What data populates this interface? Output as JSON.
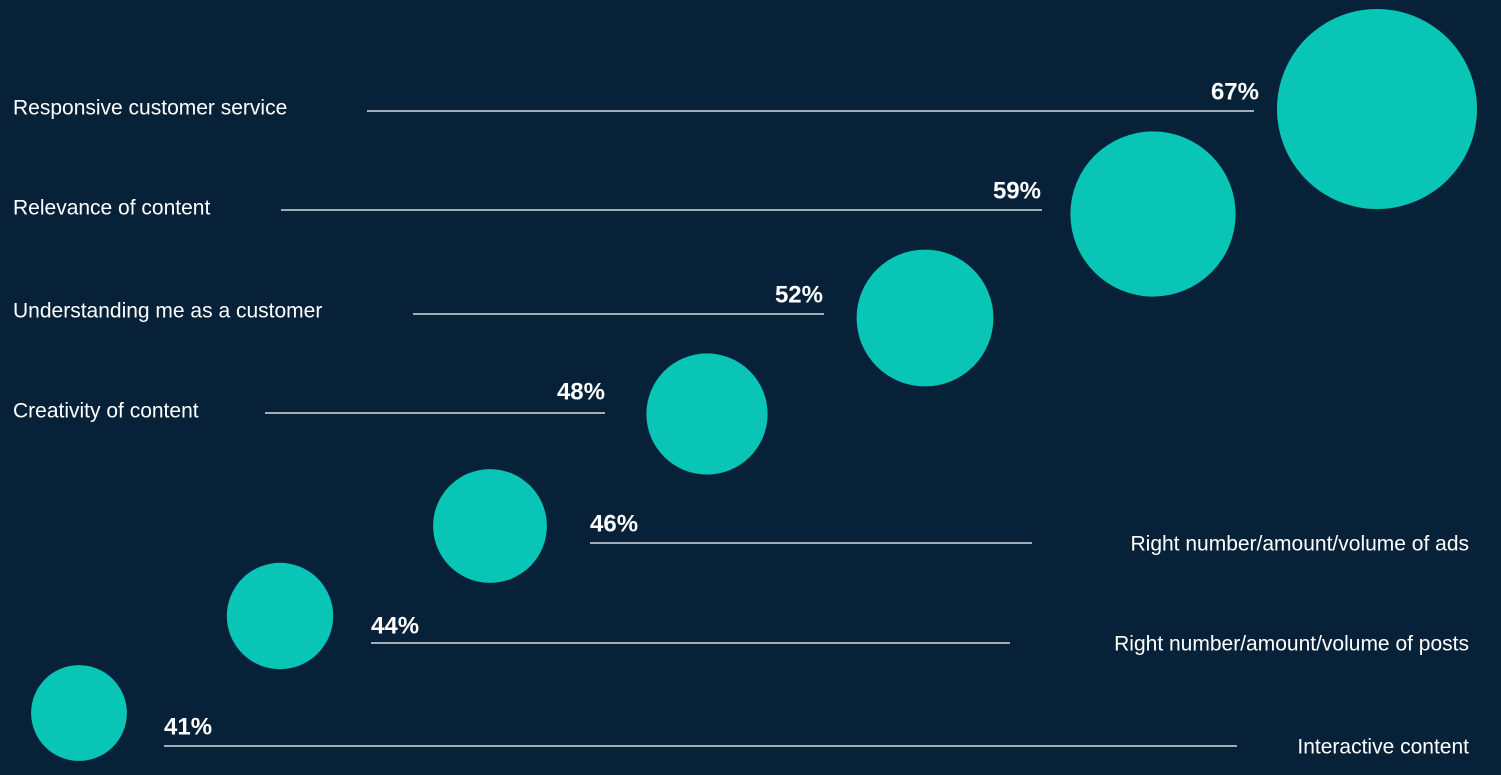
{
  "chart_data": {
    "type": "bubble",
    "title": "",
    "xlabel": "",
    "ylabel": "",
    "unit": "%",
    "colors": {
      "background": "#072238",
      "bubble": "#08c5b6",
      "text": "#ffffff",
      "line": "#ffffff"
    },
    "items": [
      {
        "label": "Responsive customer service",
        "value": 67
      },
      {
        "label": "Relevance of content",
        "value": 59
      },
      {
        "label": "Understanding me as a customer",
        "value": 52
      },
      {
        "label": "Creativity of content",
        "value": 48
      },
      {
        "label": "Right number/amount/volume of ads",
        "value": 46
      },
      {
        "label": "Right number/amount/volume of posts",
        "value": 44
      },
      {
        "label": "Interactive content",
        "value": 41
      }
    ]
  }
}
